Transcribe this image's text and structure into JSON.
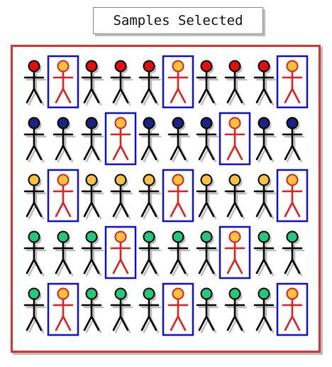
{
  "title": "Samples Selected",
  "colors": {
    "frame": "#e03030",
    "selection_box": "#1010d0",
    "selected_figure": "#e02020",
    "selected_head": "#f7c23e",
    "figure": "#000000"
  },
  "rows": [
    {
      "head_color": "#e01010",
      "selected": [
        1,
        5,
        9
      ]
    },
    {
      "head_color": "#1a237e",
      "selected": [
        3,
        7
      ]
    },
    {
      "head_color": "#f7c23e",
      "selected": [
        1,
        5,
        9
      ]
    },
    {
      "head_color": "#22c97a",
      "selected": [
        3,
        7
      ]
    },
    {
      "head_color": "#22c97a",
      "selected": [
        1,
        5,
        9
      ]
    }
  ],
  "figures_per_row": 10
}
